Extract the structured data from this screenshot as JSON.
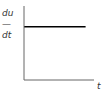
{
  "chart_data": {
    "type": "line",
    "title": "",
    "xlabel": "t",
    "annotations": [
      "du",
      "—",
      "dt"
    ],
    "x": [
      0,
      0.88
    ],
    "values": [
      0.72,
      0.72
    ],
    "color": "#000000",
    "xlim": [
      0,
      1.0
    ],
    "ylim": [
      0,
      1.0
    ],
    "tick_labels": false,
    "grid": false
  }
}
